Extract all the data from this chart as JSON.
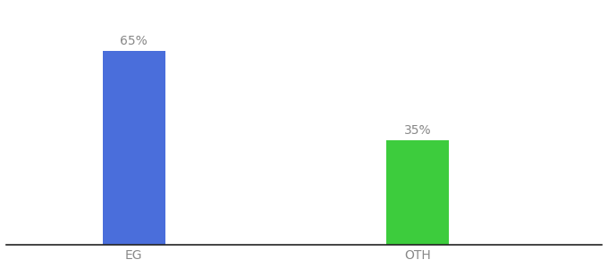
{
  "categories": [
    "EG",
    "OTH"
  ],
  "values": [
    65,
    35
  ],
  "bar_colors": [
    "#4a6edb",
    "#3dcc3d"
  ],
  "label_texts": [
    "65%",
    "35%"
  ],
  "background_color": "#ffffff",
  "text_color": "#888888",
  "bar_width": 0.22,
  "x_positions": [
    1,
    2
  ],
  "xlim": [
    0.55,
    2.65
  ],
  "ylim": [
    0,
    80
  ],
  "label_fontsize": 10,
  "tick_fontsize": 10,
  "spine_color": "#222222"
}
